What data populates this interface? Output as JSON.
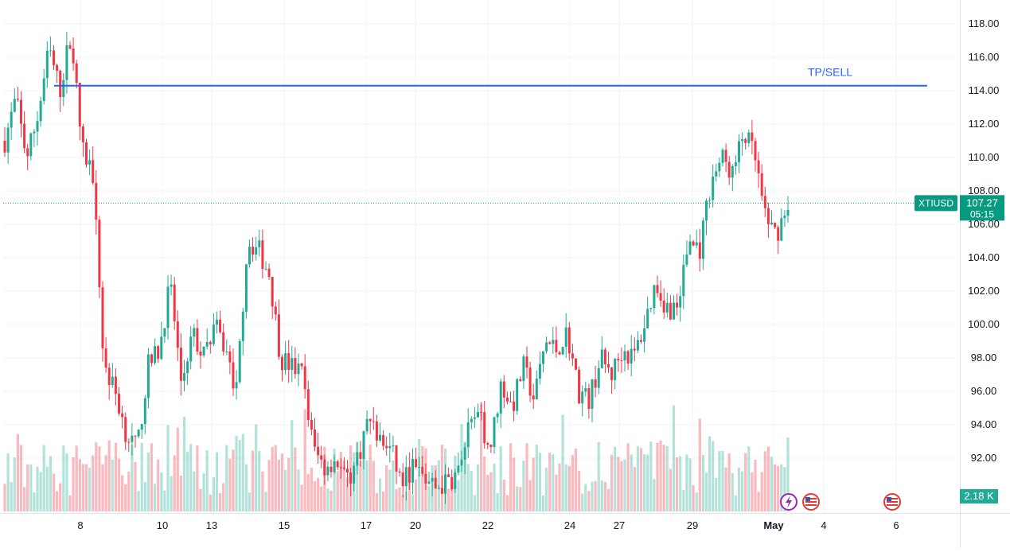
{
  "chart_data": {
    "type": "candlestick",
    "symbol": "XTIUSD",
    "last_price": "107.27",
    "countdown": "05:15",
    "volume_label": "2.18 K",
    "hline": {
      "value": 114.3,
      "label": "TP/SELL"
    },
    "y_ticks": [
      "118.00",
      "116.00",
      "114.00",
      "112.00",
      "110.00",
      "108.00",
      "106.00",
      "104.00",
      "102.00",
      "100.00",
      "98.00",
      "96.00",
      "94.00",
      "92.00"
    ],
    "x_ticks": [
      "8",
      "10",
      "13",
      "15",
      "17",
      "20",
      "22",
      "24",
      "27",
      "29",
      "May",
      "4",
      "6"
    ],
    "ylim": [
      90.0,
      119.0
    ],
    "price_path": [
      [
        "Apr 7",
        111.0
      ],
      [
        "Apr 7",
        113.5
      ],
      [
        "Apr 7",
        110.0
      ],
      [
        "Apr 7",
        112.5
      ],
      [
        "Apr 8",
        116.5
      ],
      [
        "Apr 8",
        114.0
      ],
      [
        "Apr 8",
        117.5
      ],
      [
        "Apr 8",
        110.5
      ],
      [
        "Apr 8",
        109.0
      ],
      [
        "Apr 9",
        97.5
      ],
      [
        "Apr 9",
        96.0
      ],
      [
        "Apr 9",
        93.5
      ],
      [
        "Apr 9",
        92.5
      ],
      [
        "Apr 9",
        97.5
      ],
      [
        "Apr 10",
        98.5
      ],
      [
        "Apr 10",
        102.5
      ],
      [
        "Apr 10",
        96.5
      ],
      [
        "Apr 11",
        99.5
      ],
      [
        "Apr 11",
        98.0
      ],
      [
        "Apr 11",
        100.0
      ],
      [
        "Apr 11",
        98.5
      ],
      [
        "Apr 12",
        96.0
      ],
      [
        "Apr 13",
        105.0
      ],
      [
        "Apr 13",
        104.5
      ],
      [
        "Apr 14",
        103.0
      ],
      [
        "Apr 14",
        98.0
      ],
      [
        "Apr 14",
        97.5
      ],
      [
        "Apr 15",
        97.0
      ],
      [
        "Apr 15",
        92.5
      ],
      [
        "Apr 15",
        91.5
      ],
      [
        "Apr 16",
        92.0
      ],
      [
        "Apr 16",
        90.5
      ],
      [
        "Apr 16",
        92.0
      ],
      [
        "Apr 17",
        94.5
      ],
      [
        "Apr 17",
        93.0
      ],
      [
        "Apr 18",
        92.5
      ],
      [
        "Apr 19",
        90.5
      ],
      [
        "Apr 20",
        91.5
      ],
      [
        "Apr 20",
        90.8
      ],
      [
        "Apr 21",
        90.2
      ],
      [
        "Apr 21",
        90.5
      ],
      [
        "Apr 22",
        91.0
      ],
      [
        "Apr 22",
        93.5
      ],
      [
        "Apr 22",
        94.5
      ],
      [
        "Apr 23",
        92.5
      ],
      [
        "Apr 23",
        96.5
      ],
      [
        "Apr 23",
        95.0
      ],
      [
        "Apr 24",
        97.5
      ],
      [
        "Apr 24",
        95.5
      ],
      [
        "Apr 24",
        99.0
      ],
      [
        "Apr 25",
        98.5
      ],
      [
        "Apr 25",
        99.5
      ],
      [
        "Apr 26",
        96.0
      ],
      [
        "Apr 27",
        95.5
      ],
      [
        "Apr 27",
        98.0
      ],
      [
        "Apr 28",
        97.0
      ],
      [
        "Apr 28",
        98.5
      ],
      [
        "Apr 28",
        98.0
      ],
      [
        "Apr 29",
        100.0
      ],
      [
        "Apr 29",
        102.5
      ],
      [
        "Apr 29",
        101.0
      ],
      [
        "Apr 30",
        101.0
      ],
      [
        "Apr 30",
        105.0
      ],
      [
        "Apr 30",
        104.5
      ],
      [
        "Apr 30",
        108.5
      ],
      [
        "Apr 30",
        110.0
      ],
      [
        "Apr 30",
        109.0
      ],
      [
        "May 1",
        111.5
      ],
      [
        "May 1",
        110.0
      ],
      [
        "May 1",
        106.0
      ],
      [
        "May 1",
        105.5
      ],
      [
        "May 1",
        107.3
      ]
    ]
  }
}
